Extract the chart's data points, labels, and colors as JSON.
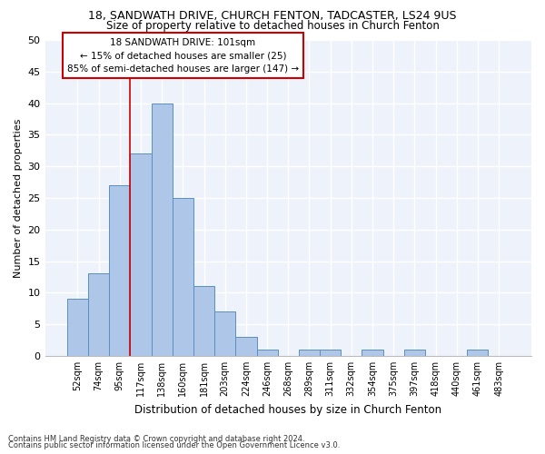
{
  "title1": "18, SANDWATH DRIVE, CHURCH FENTON, TADCASTER, LS24 9US",
  "title2": "Size of property relative to detached houses in Church Fenton",
  "xlabel": "Distribution of detached houses by size in Church Fenton",
  "ylabel": "Number of detached properties",
  "categories": [
    "52sqm",
    "74sqm",
    "95sqm",
    "117sqm",
    "138sqm",
    "160sqm",
    "181sqm",
    "203sqm",
    "224sqm",
    "246sqm",
    "268sqm",
    "289sqm",
    "311sqm",
    "332sqm",
    "354sqm",
    "375sqm",
    "397sqm",
    "418sqm",
    "440sqm",
    "461sqm",
    "483sqm"
  ],
  "values": [
    9,
    13,
    27,
    32,
    40,
    25,
    11,
    7,
    3,
    1,
    0,
    1,
    1,
    0,
    1,
    0,
    1,
    0,
    0,
    1,
    0
  ],
  "bar_color": "#aec6e8",
  "bar_edge_color": "#5a8fc0",
  "ylim": [
    0,
    50
  ],
  "yticks": [
    0,
    5,
    10,
    15,
    20,
    25,
    30,
    35,
    40,
    45,
    50
  ],
  "annotation_line1": "18 SANDWATH DRIVE: 101sqm",
  "annotation_line2": "← 15% of detached houses are smaller (25)",
  "annotation_line3": "85% of semi-detached houses are larger (147) →",
  "footnote1": "Contains HM Land Registry data © Crown copyright and database right 2024.",
  "footnote2": "Contains public sector information licensed under the Open Government Licence v3.0.",
  "background_color": "#eef2fb",
  "bar_line_color": "#cc0000",
  "vline_position": 2.5
}
